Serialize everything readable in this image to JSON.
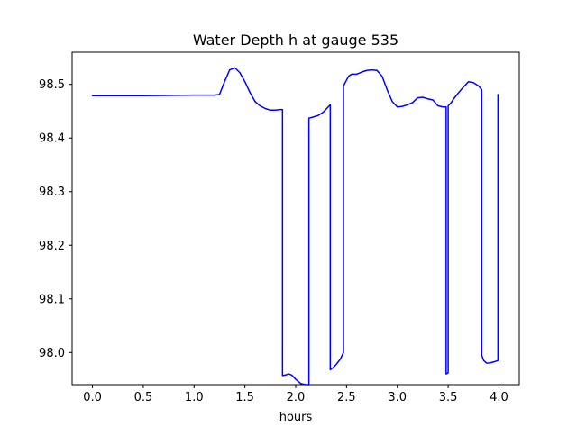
{
  "chart_data": {
    "type": "line",
    "title": "Water Depth h at gauge 535",
    "xlabel": "hours",
    "ylabel": "",
    "xlim": [
      -0.2,
      4.2
    ],
    "ylim": [
      97.94,
      98.56
    ],
    "xticks": [
      0.0,
      0.5,
      1.0,
      1.5,
      2.0,
      2.5,
      3.0,
      3.5,
      4.0
    ],
    "xtick_labels": [
      "0.0",
      "0.5",
      "1.0",
      "1.5",
      "2.0",
      "2.5",
      "3.0",
      "3.5",
      "4.0"
    ],
    "yticks": [
      98.0,
      98.1,
      98.2,
      98.3,
      98.4,
      98.5
    ],
    "ytick_labels": [
      "98.0",
      "98.1",
      "98.2",
      "98.3",
      "98.4",
      "98.5"
    ],
    "grid": false,
    "line_color": "#0000ff",
    "series": [
      {
        "x": [
          0.0,
          0.5,
          1.0,
          1.2,
          1.25,
          1.3,
          1.35,
          1.4,
          1.45,
          1.5,
          1.55,
          1.6,
          1.65,
          1.7,
          1.75,
          1.8,
          1.85,
          1.87,
          1.87,
          1.9,
          1.93,
          1.96,
          2.0,
          2.05,
          2.1,
          2.13,
          2.13,
          2.17,
          2.22,
          2.27,
          2.31,
          2.34,
          2.34,
          2.37,
          2.4,
          2.44,
          2.47,
          2.47,
          2.5,
          2.52,
          2.55,
          2.6,
          2.65,
          2.7,
          2.75,
          2.8,
          2.85,
          2.9,
          2.95,
          3.0,
          3.05,
          3.1,
          3.15,
          3.2,
          3.25,
          3.3,
          3.35,
          3.4,
          3.45,
          3.48,
          3.48,
          3.5,
          3.5,
          3.53,
          3.55,
          3.6,
          3.65,
          3.7,
          3.75,
          3.8,
          3.83,
          3.83,
          3.85,
          3.88,
          3.92,
          3.96,
          3.99,
          3.99
        ],
        "y": [
          98.479,
          98.479,
          98.48,
          98.48,
          98.481,
          98.505,
          98.527,
          98.531,
          98.522,
          98.505,
          98.485,
          98.468,
          98.46,
          98.455,
          98.452,
          98.452,
          98.453,
          98.453,
          97.957,
          97.958,
          97.96,
          97.958,
          97.95,
          97.942,
          97.94,
          97.94,
          98.437,
          98.439,
          98.442,
          98.448,
          98.456,
          98.462,
          97.968,
          97.972,
          97.978,
          97.988,
          98.0,
          98.497,
          98.508,
          98.515,
          98.519,
          98.519,
          98.523,
          98.526,
          98.527,
          98.526,
          98.515,
          98.49,
          98.468,
          98.458,
          98.459,
          98.462,
          98.466,
          98.475,
          98.476,
          98.473,
          98.471,
          98.46,
          98.458,
          98.458,
          97.96,
          97.962,
          98.46,
          98.466,
          98.472,
          98.484,
          98.495,
          98.505,
          98.503,
          98.497,
          98.49,
          97.995,
          97.985,
          97.98,
          97.981,
          97.983,
          97.985,
          98.481
        ]
      }
    ]
  }
}
